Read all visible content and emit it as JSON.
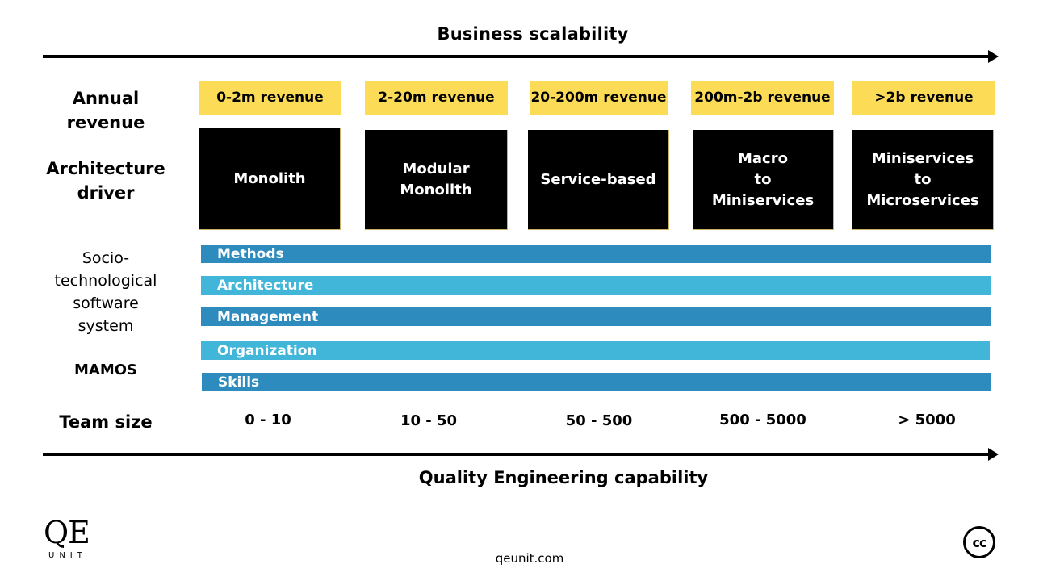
{
  "top_axis_title": "Business scalability",
  "bottom_axis_title": "Quality Engineering capability",
  "rows": {
    "revenue_label": "Annual revenue",
    "architecture_label_line1": "Architecture",
    "architecture_label_line2": "driver",
    "socio_lines": [
      "Socio-",
      "technological",
      "software",
      "system"
    ],
    "mamos_label": "MAMOS",
    "team_label": "Team size"
  },
  "stages": [
    {
      "revenue": "0-2m revenue",
      "architecture": [
        "Monolith"
      ],
      "team_size": "0 - 10"
    },
    {
      "revenue": "2-20m revenue",
      "architecture": [
        "Modular",
        "Monolith"
      ],
      "team_size": "10 - 50"
    },
    {
      "revenue": "20-200m revenue",
      "architecture": [
        "Service-based"
      ],
      "team_size": "50 - 500"
    },
    {
      "revenue": "200m-2b revenue",
      "architecture": [
        "Macro",
        "to",
        "Miniservices"
      ],
      "team_size": "500 - 5000"
    },
    {
      "revenue": ">2b revenue",
      "architecture": [
        "Miniservices",
        "to",
        "Microservices"
      ],
      "team_size": "> 5000"
    }
  ],
  "mamos_bars": [
    {
      "label": "Methods",
      "color": "#2e8bbd"
    },
    {
      "label": "Architecture",
      "color": "#42b6d9"
    },
    {
      "label": "Management",
      "color": "#2e8bbd"
    },
    {
      "label": "Organization",
      "color": "#42b6d9"
    },
    {
      "label": "Skills",
      "color": "#2e8bbd"
    }
  ],
  "colors": {
    "revenue_box": "#fcdb57",
    "architecture_box": "#000000"
  },
  "footer": {
    "logo_main": "QE",
    "logo_sub": "UNIT",
    "website": "qeunit.com",
    "license_badge": "cc"
  }
}
